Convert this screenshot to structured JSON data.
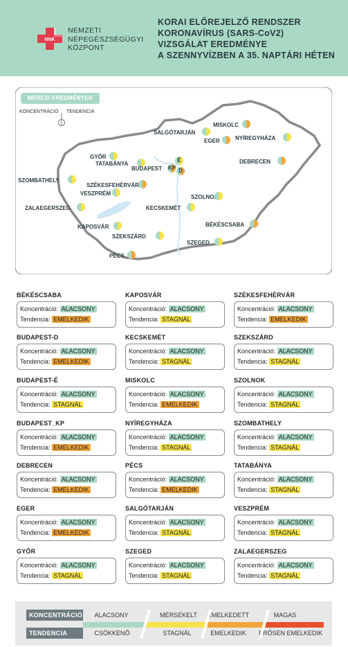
{
  "header": {
    "logo_badge": "NNK",
    "logo_lines": [
      "NEMZETI",
      "NÉPEGÉSZSÉGÜGYI",
      "KÖZPONT"
    ],
    "title_lines": [
      "KORAI ELŐREJELZŐ RENDSZER",
      "KORONAVÍRUS (SARS-CoV2)",
      "VIZSGÁLAT EREDMÉNYE",
      "A SZENNYVÍZBEN A 35. NAPTÁRI HÉTEN"
    ]
  },
  "map": {
    "tag": "MÉRÉSI EREDMÉNYEK",
    "legend_concentration": "KONCENTRÁCIÓ",
    "legend_trend": "TENDENCIA",
    "cities": [
      {
        "id": "miskolc",
        "label": "MISKOLC",
        "k": "#a9d9c4",
        "t": "#f2a53a"
      },
      {
        "id": "salgotarjan",
        "label": "SALGÓTARJÁN",
        "k": "#a9d9c4",
        "t": "#f6e24a"
      },
      {
        "id": "eger",
        "label": "EGER",
        "k": "#a9d9c4",
        "t": "#f2a53a"
      },
      {
        "id": "nyiregyhaza",
        "label": "NYÍREGYHÁZA",
        "k": "#a9d9c4",
        "t": "#f6e24a"
      },
      {
        "id": "gyor",
        "label": "GYŐR",
        "k": "#a9d9c4",
        "t": "#f6e24a"
      },
      {
        "id": "tatabanya",
        "label": "TATABÁNYA",
        "k": "#a9d9c4",
        "t": "#f6e24a"
      },
      {
        "id": "budapest",
        "label": "BUDAPEST",
        "k": "#a9d9c4",
        "t": "#f2a53a"
      },
      {
        "id": "debrecen",
        "label": "DEBRECEN",
        "k": "#a9d9c4",
        "t": "#f2a53a"
      },
      {
        "id": "szombathely",
        "label": "SZOMBATHELY",
        "k": "#a9d9c4",
        "t": "#f6e24a"
      },
      {
        "id": "szekesfehervar",
        "label": "SZÉKESFEHÉRVÁR",
        "k": "#a9d9c4",
        "t": "#f2a53a"
      },
      {
        "id": "veszprem",
        "label": "VESZPRÉM",
        "k": "#a9d9c4",
        "t": "#f6e24a"
      },
      {
        "id": "szolnok",
        "label": "SZOLNOK",
        "k": "#a9d9c4",
        "t": "#f6e24a"
      },
      {
        "id": "zalaegerszeg",
        "label": "ZALAEGERSZEG",
        "k": "#a9d9c4",
        "t": "#f6e24a"
      },
      {
        "id": "kecskemet",
        "label": "KECSKEMÉT",
        "k": "#a9d9c4",
        "t": "#f6e24a"
      },
      {
        "id": "bekescsaba",
        "label": "BÉKÉSCSABA",
        "k": "#a9d9c4",
        "t": "#f2a53a"
      },
      {
        "id": "kaposvar",
        "label": "KAPOSVÁR",
        "k": "#a9d9c4",
        "t": "#f6e24a"
      },
      {
        "id": "szekszard",
        "label": "SZEKSZÁRD",
        "k": "#a9d9c4",
        "t": "#f6e24a"
      },
      {
        "id": "szeged",
        "label": "SZEGED",
        "k": "#a9d9c4",
        "t": "#f6e24a"
      },
      {
        "id": "pecs",
        "label": "PÉCS",
        "k": "#a9d9c4",
        "t": "#f2a53a"
      }
    ],
    "budapest_markers": [
      "KP",
      "É",
      "D"
    ]
  },
  "cards": [
    {
      "name": "BÉKÉSCSABA",
      "k_label": "Koncentráció:",
      "k": "ALACSONY",
      "t_label": "Tendencia:",
      "t": "EMELKEDIK",
      "tc": "orange"
    },
    {
      "name": "KAPOSVÁR",
      "k_label": "Koncentráció:",
      "k": "ALACSONY",
      "t_label": "Tendencia:",
      "t": "STAGNÁL",
      "tc": "yellow"
    },
    {
      "name": "SZÉKESFEHÉRVÁR",
      "k_label": "Koncentráció:",
      "k": "ALACSONY",
      "t_label": "Tendencia:",
      "t": "EMELKEDIK",
      "tc": "orange"
    },
    {
      "name": "BUDAPEST-D",
      "k_label": "Koncentráció:",
      "k": "ALACSONY",
      "t_label": "Tendencia:",
      "t": "EMELKEDIK",
      "tc": "orange"
    },
    {
      "name": "KECSKEMÉT",
      "k_label": "Koncentráció:",
      "k": "ALACSONY",
      "t_label": "Tendencia:",
      "t": "STAGNÁL",
      "tc": "yellow"
    },
    {
      "name": "SZEKSZÁRD",
      "k_label": "Koncentráció:",
      "k": "ALACSONY",
      "t_label": "Tendencia:",
      "t": "STAGNÁL",
      "tc": "yellow"
    },
    {
      "name": "BUDAPEST-É",
      "k_label": "Koncentráció:",
      "k": "ALACSONY",
      "t_label": "Tendencia:",
      "t": "STAGNÁL",
      "tc": "yellow"
    },
    {
      "name": "MISKOLC",
      "k_label": "Koncentráció:",
      "k": "ALACSONY",
      "t_label": "Tendencia:",
      "t": "EMELKEDIK",
      "tc": "orange"
    },
    {
      "name": "SZOLNOK",
      "k_label": "Koncentráció:",
      "k": "ALACSONY",
      "t_label": "Tendencia:",
      "t": "STAGNÁL",
      "tc": "yellow"
    },
    {
      "name": "BUDAPEST_KP",
      "k_label": "Koncentráció:",
      "k": "ALACSONY",
      "t_label": "Tendencia:",
      "t": "EMELKEDIK",
      "tc": "orange"
    },
    {
      "name": "NYÍREGYHÁZA",
      "k_label": "Koncentráció:",
      "k": "ALACSONY",
      "t_label": "Tendencia:",
      "t": "STAGNÁL",
      "tc": "yellow"
    },
    {
      "name": "SZOMBATHELY",
      "k_label": "Koncentráció:",
      "k": "ALACSONY",
      "t_label": "Tendencia:",
      "t": "STAGNÁL",
      "tc": "yellow"
    },
    {
      "name": "DEBRECEN",
      "k_label": "Koncentráció:",
      "k": "ALACSONY",
      "t_label": "Tendencia:",
      "t": "EMELKEDIK",
      "tc": "orange"
    },
    {
      "name": "PÉCS",
      "k_label": "Koncentráció:",
      "k": "ALACSONY",
      "t_label": "Tendencia:",
      "t": "EMELKEDIK",
      "tc": "orange"
    },
    {
      "name": "TATABÁNYA",
      "k_label": "Koncentráció:",
      "k": "ALACSONY",
      "t_label": "Tendencia:",
      "t": "STAGNÁL",
      "tc": "yellow"
    },
    {
      "name": "EGER",
      "k_label": "Koncentráció:",
      "k": "ALACSONY",
      "t_label": "Tendencia:",
      "t": "EMELKEDIK",
      "tc": "orange"
    },
    {
      "name": "SALGÓTARJÁN",
      "k_label": "Koncentráció:",
      "k": "ALACSONY",
      "t_label": "Tendencia:",
      "t": "STAGNÁL",
      "tc": "yellow"
    },
    {
      "name": "VESZPRÉM",
      "k_label": "Koncentráció:",
      "k": "ALACSONY",
      "t_label": "Tendencia:",
      "t": "STAGNÁL",
      "tc": "yellow"
    },
    {
      "name": "GYŐR",
      "k_label": "Koncentráció:",
      "k": "ALACSONY",
      "t_label": "Tendencia:",
      "t": "STAGNÁL",
      "tc": "yellow"
    },
    {
      "name": "SZEGED",
      "k_label": "Koncentráció:",
      "k": "ALACSONY",
      "t_label": "Tendencia:",
      "t": "STAGNÁL",
      "tc": "yellow"
    },
    {
      "name": "ZALAEGERSZEG",
      "k_label": "Koncentráció:",
      "k": "ALACSONY",
      "t_label": "Tendencia:",
      "t": "STAGNÁL",
      "tc": "yellow"
    }
  ],
  "legend": {
    "concentration_label": "KONCENTRÁCIÓ",
    "trend_label": "TENDENCIA",
    "concentration_levels": [
      "ALACSONY",
      "MÉRSÉKELT",
      "EMELKEDETT",
      "MAGAS"
    ],
    "trend_levels": [
      "CSÖKKENŐ",
      "STAGNÁL",
      "EMELKEDIK",
      "ERŐSEN EMELKEDIK"
    ],
    "colors": [
      "#a9d9c4",
      "#f6e24a",
      "#f2a53a",
      "#e8502e"
    ]
  }
}
